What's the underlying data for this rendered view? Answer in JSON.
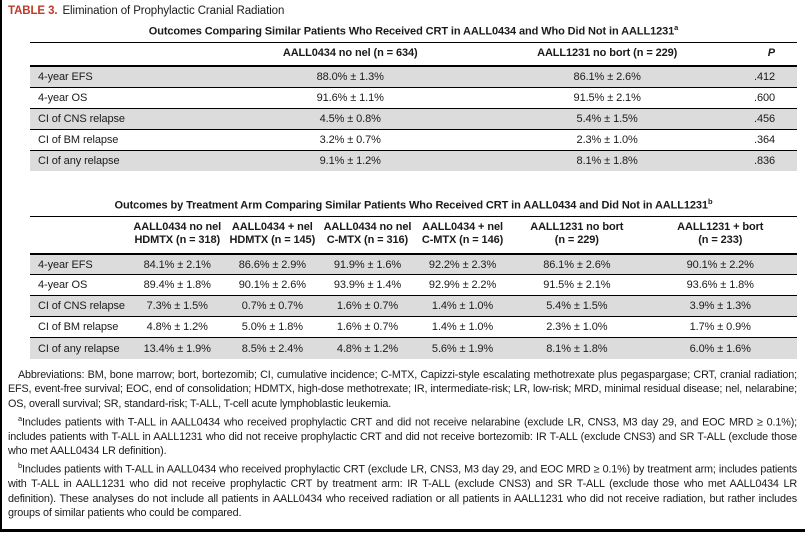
{
  "table_label": "TABLE 3.",
  "table_caption": "Elimination of Prophylactic Cranial Radiation",
  "accent_color": "#bf3a26",
  "row_shade_color": "#dcdcdc",
  "table1": {
    "title": "Outcomes Comparing Similar Patients Who Received CRT in AALL0434 and Who Did Not in AALL1231",
    "title_superscript": "a",
    "columns": [
      "AALL0434 no nel (n = 634)",
      "AALL1231 no bort (n = 229)"
    ],
    "p_header": "P",
    "rows": [
      {
        "label": "4-year EFS",
        "values": [
          "88.0% ± 1.3%",
          "86.1% ± 2.6%"
        ],
        "p": ".412"
      },
      {
        "label": "4-year OS",
        "values": [
          "91.6% ± 1.1%",
          "91.5% ± 2.1%"
        ],
        "p": ".600"
      },
      {
        "label": "CI of CNS relapse",
        "values": [
          "4.5% ± 0.8%",
          "5.4% ± 1.5%"
        ],
        "p": ".456"
      },
      {
        "label": "CI of BM relapse",
        "values": [
          "3.2% ± 0.7%",
          "2.3% ± 1.0%"
        ],
        "p": ".364"
      },
      {
        "label": "CI of any relapse",
        "values": [
          "9.1% ± 1.2%",
          "8.1% ± 1.8%"
        ],
        "p": ".836"
      }
    ]
  },
  "table2": {
    "title": "Outcomes by Treatment Arm Comparing Similar Patients Who Received CRT in AALL0434 and Did Not in AALL1231",
    "title_superscript": "b",
    "columns": [
      {
        "line1": "AALL0434 no nel",
        "line2": "HDMTX (n = 318)"
      },
      {
        "line1": "AALL0434 + nel",
        "line2": "HDMTX (n = 145)"
      },
      {
        "line1": "AALL0434 no nel",
        "line2": "C-MTX (n = 316)"
      },
      {
        "line1": "AALL0434 + nel",
        "line2": "C-MTX (n = 146)"
      },
      {
        "line1": "AALL1231 no bort",
        "line2": "(n = 229)"
      },
      {
        "line1": "AALL1231 + bort",
        "line2": "(n = 233)"
      }
    ],
    "rows": [
      {
        "label": "4-year EFS",
        "values": [
          "84.1% ± 2.1%",
          "86.6% ± 2.9%",
          "91.9% ± 1.6%",
          "92.2% ± 2.3%",
          "86.1% ± 2.6%",
          "90.1% ± 2.2%"
        ]
      },
      {
        "label": "4-year OS",
        "values": [
          "89.4% ± 1.8%",
          "90.1% ± 2.6%",
          "93.9% ± 1.4%",
          "92.9% ± 2.2%",
          "91.5% ± 2.1%",
          "93.6% ± 1.8%"
        ]
      },
      {
        "label": "CI of CNS relapse",
        "values": [
          "7.3% ± 1.5%",
          "0.7% ± 0.7%",
          "1.6% ± 0.7%",
          "1.4% ± 1.0%",
          "5.4% ± 1.5%",
          "3.9% ± 1.3%"
        ]
      },
      {
        "label": "CI of BM relapse",
        "values": [
          "4.8% ± 1.2%",
          "5.0% ± 1.8%",
          "1.6% ± 0.7%",
          "1.4% ± 1.0%",
          "2.3% ± 1.0%",
          "1.7% ± 0.9%"
        ]
      },
      {
        "label": "CI of any relapse",
        "values": [
          "13.4% ± 1.9%",
          "8.5% ± 2.4%",
          "4.8% ± 1.2%",
          "5.6% ± 1.9%",
          "8.1% ± 1.8%",
          "6.0% ± 1.6%"
        ]
      }
    ]
  },
  "footnotes": {
    "abbreviations": "Abbreviations: BM, bone marrow; bort, bortezomib; CI, cumulative incidence; C-MTX, Capizzi-style escalating methotrexate plus pegaspargase; CRT, cranial radiation; EFS, event-free survival; EOC, end of consolidation; HDMTX, high-dose methotrexate; IR, intermediate-risk; LR, low-risk; MRD, minimal residual disease; nel, nelarabine; OS, overall survival; SR, standard-risk; T-ALL, T-cell acute lymphoblastic leukemia.",
    "footnote_a_marker": "a",
    "footnote_a": "Includes patients with T-ALL in AALL0434 who received prophylactic CRT and did not receive nelarabine (exclude LR, CNS3, M3 day 29, and EOC MRD ≥ 0.1%); includes patients with T-ALL in AALL1231 who did not receive prophylactic CRT and did not receive bortezomib: IR T-ALL (exclude CNS3) and SR T-ALL (exclude those who met AALL0434 LR definition).",
    "footnote_b_marker": "b",
    "footnote_b": "Includes patients with T-ALL in AALL0434 who received prophylactic CRT (exclude LR, CNS3, M3 day 29, and EOC MRD ≥ 0.1%) by treatment arm; includes patients with T-ALL in AALL1231 who did not receive prophylactic CRT by treatment arm: IR T-ALL (exclude CNS3) and SR T-ALL (exclude those who met AALL0434 LR definition). These analyses do not include all patients in AALL0434 who received radiation or all patients in AALL1231 who did not receive radiation, but rather includes groups of similar patients who could be compared."
  }
}
